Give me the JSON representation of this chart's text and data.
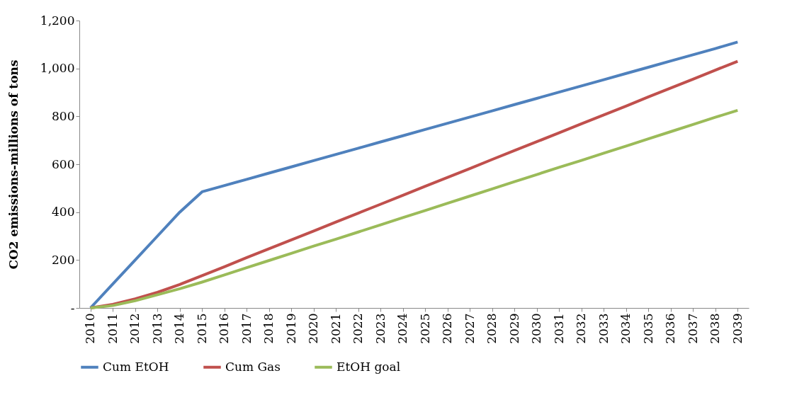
{
  "chart_data": {
    "type": "line",
    "ylabel": "CO2 emissions-millions of tons",
    "categories": [
      "2010",
      "2011",
      "2012",
      "2013",
      "2014",
      "2015",
      "2016",
      "2017",
      "2018",
      "2019",
      "2020",
      "2021",
      "2022",
      "2023",
      "2024",
      "2025",
      "2026",
      "2027",
      "2028",
      "2029",
      "2030",
      "2031",
      "2032",
      "2033",
      "2034",
      "2035",
      "2036",
      "2037",
      "2038",
      "2039"
    ],
    "series": [
      {
        "name": "Cum EtOH",
        "color": "#4f81bd",
        "values": [
          0,
          100,
          200,
          300,
          400,
          485,
          511,
          537,
          563,
          589,
          615,
          641,
          667,
          693,
          719,
          745,
          771,
          797,
          823,
          849,
          875,
          901,
          927,
          953,
          979,
          1005,
          1031,
          1057,
          1083,
          1110
        ]
      },
      {
        "name": "Cum Gas",
        "color": "#c0504d",
        "values": [
          0,
          15,
          38,
          65,
          98,
          135,
          172,
          210,
          247,
          284,
          321,
          359,
          396,
          433,
          470,
          508,
          545,
          582,
          620,
          657,
          694,
          731,
          769,
          806,
          843,
          881,
          918,
          955,
          993,
          1030
        ]
      },
      {
        "name": "EtOH goal",
        "color": "#9bbb59",
        "values": [
          0,
          10,
          30,
          55,
          80,
          108,
          138,
          168,
          198,
          228,
          258,
          287,
          317,
          347,
          377,
          407,
          437,
          467,
          497,
          527,
          557,
          587,
          616,
          646,
          676,
          706,
          736,
          766,
          796,
          825
        ]
      }
    ],
    "ylim": [
      0,
      1200
    ],
    "yticks": [
      {
        "value": 0,
        "label": "-"
      },
      200,
      {
        "value": 400,
        "label": "400"
      },
      600,
      800,
      {
        "value": 1000,
        "label": "1,000"
      },
      {
        "value": 1200,
        "label": "1,200"
      }
    ],
    "grid": false,
    "legend": "bottom",
    "marker": "none",
    "line_style": "solid"
  }
}
